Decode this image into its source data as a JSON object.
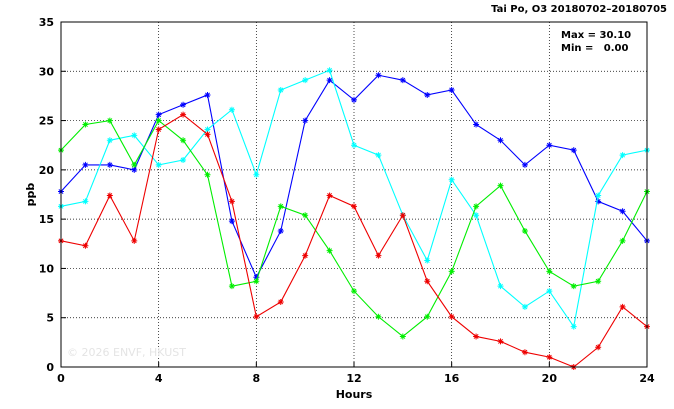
{
  "chart_data": {
    "type": "line",
    "title": "Tai Po, O3 20180702–20180705",
    "xlabel": "Hours",
    "ylabel": "ppb",
    "xlim": [
      0,
      24
    ],
    "ylim": [
      0,
      35
    ],
    "xticks": [
      0,
      4,
      8,
      12,
      16,
      20,
      24
    ],
    "yticks": [
      0,
      5,
      10,
      15,
      20,
      25,
      30,
      35
    ],
    "grid": true,
    "stats": {
      "max": "Max = 30.10",
      "min": "Min =   0.00"
    },
    "watermark": "© 2026  ENVF, HKUST",
    "x": [
      0,
      1,
      2,
      3,
      4,
      5,
      6,
      7,
      8,
      9,
      10,
      11,
      12,
      13,
      14,
      15,
      16,
      17,
      18,
      19,
      20,
      21,
      22,
      23,
      24
    ],
    "series": [
      {
        "color": "#0000ff",
        "values": [
          17.8,
          20.5,
          20.5,
          20.0,
          25.6,
          26.6,
          27.6,
          14.8,
          9.1,
          13.8,
          25.0,
          29.1,
          27.1,
          29.6,
          29.1,
          27.6,
          28.1,
          24.6,
          23.0,
          20.5,
          22.5,
          22.0,
          16.8,
          15.8,
          12.8
        ]
      },
      {
        "color": "#00ffff",
        "values": [
          16.3,
          16.8,
          23.0,
          23.5,
          20.5,
          21.0,
          24.1,
          26.1,
          19.5,
          28.1,
          29.1,
          30.1,
          22.5,
          21.5,
          15.4,
          10.8,
          19.0,
          15.4,
          8.2,
          6.1,
          7.7,
          4.1,
          17.4,
          21.5,
          22.0
        ]
      },
      {
        "color": "#00ee00",
        "values": [
          22.0,
          24.6,
          25.0,
          20.5,
          25.0,
          23.0,
          19.5,
          8.2,
          8.7,
          16.3,
          15.4,
          11.8,
          7.7,
          5.1,
          3.1,
          5.1,
          9.7,
          16.3,
          18.4,
          13.8,
          9.7,
          8.2,
          8.7,
          12.8,
          17.8
        ]
      },
      {
        "color": "#ee0000",
        "values": [
          12.8,
          12.3,
          17.4,
          12.8,
          24.1,
          25.6,
          23.6,
          16.8,
          5.1,
          6.6,
          11.3,
          17.4,
          16.3,
          11.3,
          15.4,
          8.7,
          5.1,
          3.1,
          2.6,
          1.5,
          1.0,
          0.0,
          2.0,
          6.1,
          4.1
        ]
      }
    ]
  }
}
